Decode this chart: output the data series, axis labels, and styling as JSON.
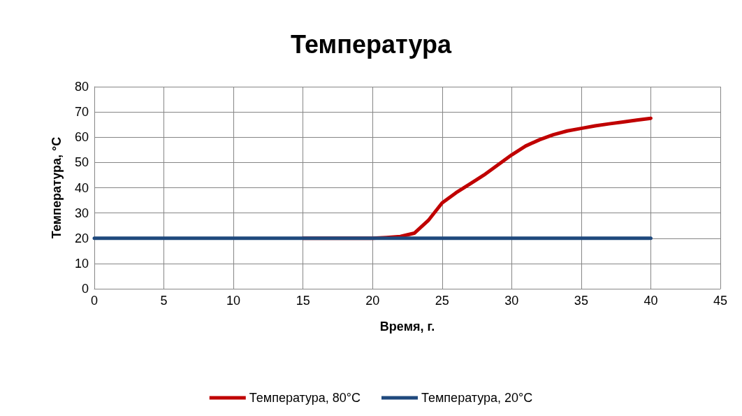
{
  "chart_data": {
    "type": "line",
    "title": "Температура",
    "xlabel": "Время, г.",
    "ylabel": "Температура, °C",
    "series": [
      {
        "name": "Температура, 80°C",
        "color": "#c00000",
        "x": [
          15,
          20,
          21,
          22,
          23,
          24,
          25,
          26,
          27,
          28,
          29,
          30,
          31,
          32,
          33,
          34,
          35,
          36,
          37,
          38,
          39,
          40
        ],
        "values": [
          20,
          20,
          20.3,
          20.7,
          22,
          27,
          34,
          38,
          41.5,
          45,
          49,
          53,
          56.5,
          59,
          61,
          62.5,
          63.5,
          64.5,
          65.3,
          66,
          66.8,
          67.5
        ]
      },
      {
        "name": "Температура, 20°C",
        "color": "#1f497d",
        "x": [
          0,
          5,
          10,
          15,
          20,
          25,
          30,
          35,
          40
        ],
        "values": [
          20,
          20,
          20,
          20,
          20,
          20,
          20,
          20,
          20
        ]
      }
    ],
    "xlim": [
      0,
      45
    ],
    "xticks": [
      0,
      5,
      10,
      15,
      20,
      25,
      30,
      35,
      40,
      45
    ],
    "ylim": [
      0,
      80
    ],
    "yticks": [
      0,
      10,
      20,
      30,
      40,
      50,
      60,
      70,
      80
    ],
    "grid": true,
    "legend": "bottom",
    "marker": "none",
    "line_style": "solid"
  }
}
